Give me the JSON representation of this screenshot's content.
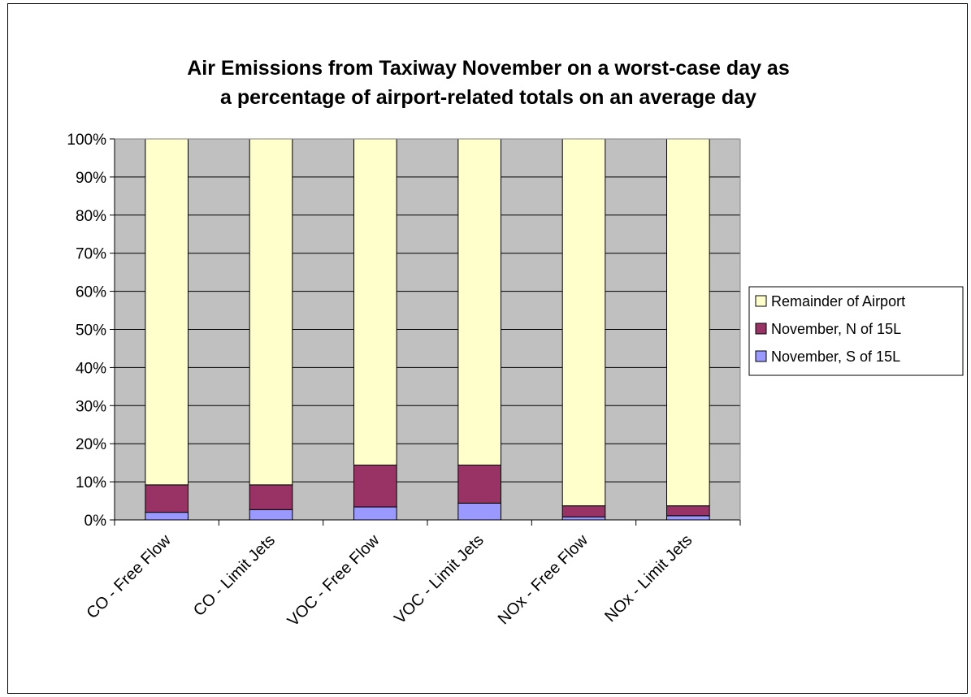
{
  "chart_data": {
    "type": "bar",
    "stacked": true,
    "percent_stacked": true,
    "title": "Air Emissions from Taxiway November on a worst-case day as a percentage of airport-related totals on an average day",
    "title_lines": [
      "Air Emissions from Taxiway November on a worst-case day as",
      "a percentage of airport-related totals on an average day"
    ],
    "categories": [
      "CO - Free Flow",
      "CO - Limit Jets",
      "VOC - Free Flow",
      "VOC - Limit Jets",
      "NOx - Free Flow",
      "NOx - Limit Jets"
    ],
    "series": [
      {
        "name": "November, S of 15L",
        "color": "#9999ff",
        "values": [
          2.0,
          2.7,
          3.4,
          4.4,
          0.8,
          1.1
        ]
      },
      {
        "name": "November, N of 15L",
        "color": "#993366",
        "values": [
          7.2,
          6.5,
          11.0,
          10.0,
          2.9,
          2.6
        ]
      },
      {
        "name": "Remainder of Airport",
        "color": "#ffffcc",
        "values": [
          90.8,
          90.8,
          85.6,
          85.6,
          96.3,
          96.3
        ]
      }
    ],
    "ylim": [
      0,
      100
    ],
    "yticks": [
      "0%",
      "10%",
      "20%",
      "30%",
      "40%",
      "50%",
      "60%",
      "70%",
      "80%",
      "90%",
      "100%"
    ],
    "xlabel": "",
    "ylabel": "",
    "grid": true,
    "plot_background": "#c0c0c0",
    "legend_order": [
      "Remainder of Airport",
      "November, N of 15L",
      "November, S of 15L"
    ],
    "legend_position": "right"
  }
}
